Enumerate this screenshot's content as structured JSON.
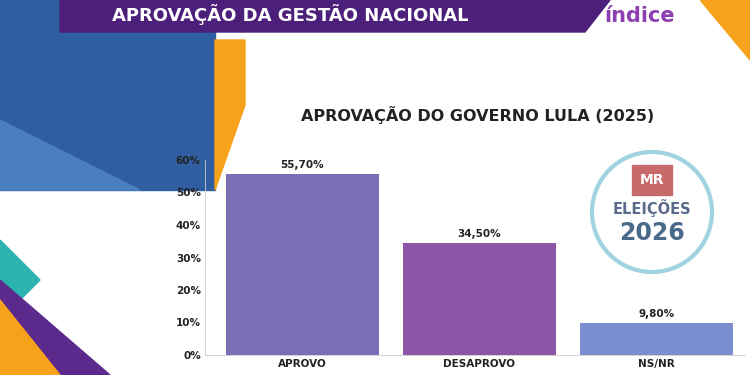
{
  "chart_data": {
    "type": "bar",
    "title": "APROVAÇÃO DO GOVERNO LULA (2025)",
    "annotations": [
      "APROVAÇÃO DA GESTÃO NACIONAL",
      "índice",
      "MR",
      "ELEIÇÕES",
      "2026"
    ],
    "categories": [
      "APROVO",
      "DESAPROVO",
      "NS/NR"
    ],
    "values": [
      55.7,
      34.5,
      9.8
    ],
    "value_labels": [
      "55,70%",
      "34,50%",
      "9,80%"
    ],
    "colors": [
      "#7a6fb5",
      "#8c55a5",
      "#7b8fd0"
    ],
    "ylim": [
      0,
      60
    ],
    "yticks": [
      {
        "value": 0,
        "label": "0%"
      },
      {
        "value": 10,
        "label": "10%"
      },
      {
        "value": 20,
        "label": "20%"
      },
      {
        "value": 30,
        "label": "30%"
      },
      {
        "value": 40,
        "label": "40%"
      },
      {
        "value": 50,
        "label": "50%"
      },
      {
        "value": 60,
        "label": "60%"
      }
    ],
    "grid": false,
    "data_labels": true
  }
}
